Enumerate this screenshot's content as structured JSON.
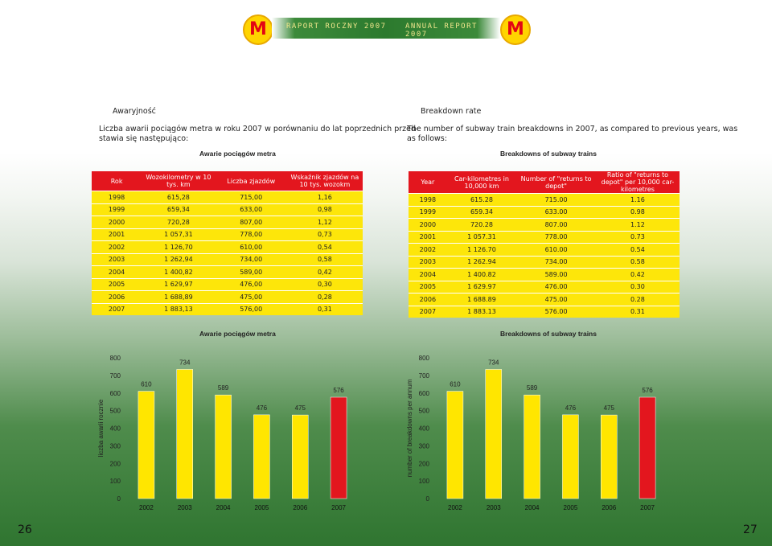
{
  "header": {
    "left_title": "RAPORT ROCZNY 2007",
    "right_title": "ANNUAL REPORT 2007",
    "logo_letter": "M"
  },
  "left": {
    "section_title": "Awaryjność",
    "intro": "Liczba awarii pociągów metra w roku 2007 w porównaniu do lat poprzednich przed-",
    "intro2": "stawia się następująco:",
    "table_title": "Awarie pociągów metra",
    "headers": [
      "Rok",
      "Wozokilometry w 10 tys. km",
      "Liczba zjazdów",
      "Wskaźnik zjazdów na 10 tys. wozokm"
    ],
    "rows": [
      [
        "1998",
        "615,28",
        "715,00",
        "1,16"
      ],
      [
        "1999",
        "659,34",
        "633,00",
        "0,98"
      ],
      [
        "2000",
        "720,28",
        "807,00",
        "1,12"
      ],
      [
        "2001",
        "1 057,31",
        "778,00",
        "0,73"
      ],
      [
        "2002",
        "1 126,70",
        "610,00",
        "0,54"
      ],
      [
        "2003",
        "1 262,94",
        "734,00",
        "0,58"
      ],
      [
        "2004",
        "1 400,82",
        "589,00",
        "0,42"
      ],
      [
        "2005",
        "1 629,97",
        "476,00",
        "0,30"
      ],
      [
        "2006",
        "1 688,89",
        "475,00",
        "0,28"
      ],
      [
        "2007",
        "1 883,13",
        "576,00",
        "0,31"
      ]
    ],
    "chart_title": "Awarie pociągów metra",
    "page_number": "26"
  },
  "right": {
    "section_title": "Breakdown rate",
    "intro": "The number of subway train breakdowns in 2007, as compared to previous years, was",
    "intro2": "as follows:",
    "table_title": "Breakdowns of subway trains",
    "headers": [
      "Year",
      "Car-kilometres in 10,000 km",
      "Number of \"returns to depot\"",
      "Ratio of \"returns to depot\" per 10,000 car-kilometres"
    ],
    "rows": [
      [
        "1998",
        "615.28",
        "715.00",
        "1.16"
      ],
      [
        "1999",
        "659.34",
        "633.00",
        "0.98"
      ],
      [
        "2000",
        "720.28",
        "807.00",
        "1.12"
      ],
      [
        "2001",
        "1 057.31",
        "778.00",
        "0.73"
      ],
      [
        "2002",
        "1 126.70",
        "610.00",
        "0.54"
      ],
      [
        "2003",
        "1 262.94",
        "734.00",
        "0.58"
      ],
      [
        "2004",
        "1 400.82",
        "589.00",
        "0.42"
      ],
      [
        "2005",
        "1 629.97",
        "476.00",
        "0.30"
      ],
      [
        "2006",
        "1 688.89",
        "475.00",
        "0.28"
      ],
      [
        "2007",
        "1 883.13",
        "576.00",
        "0.31"
      ]
    ],
    "chart_title": "Breakdowns of subway trains",
    "page_number": "27"
  },
  "chart_data": [
    {
      "type": "bar",
      "title": "Awarie pociągów metra",
      "ylabel": "liczba awarii rocznie",
      "categories": [
        "2002",
        "2003",
        "2004",
        "2005",
        "2006",
        "2007"
      ],
      "values": [
        610,
        734,
        589,
        476,
        475,
        576
      ],
      "yticks": [
        0,
        100,
        200,
        300,
        400,
        500,
        600,
        700,
        800
      ],
      "colors": [
        "#ffe600",
        "#ffe600",
        "#ffe600",
        "#ffe600",
        "#ffe600",
        "#e3161e"
      ]
    },
    {
      "type": "bar",
      "title": "Breakdowns of subway trains",
      "ylabel": "number of breakdowns per annum",
      "categories": [
        "2002",
        "2003",
        "2004",
        "2005",
        "2006",
        "2007"
      ],
      "values": [
        610,
        734,
        589,
        476,
        475,
        576
      ],
      "yticks": [
        0,
        100,
        200,
        300,
        400,
        500,
        600,
        700,
        800
      ],
      "colors": [
        "#ffe600",
        "#ffe600",
        "#ffe600",
        "#ffe600",
        "#ffe600",
        "#e3161e"
      ]
    }
  ]
}
